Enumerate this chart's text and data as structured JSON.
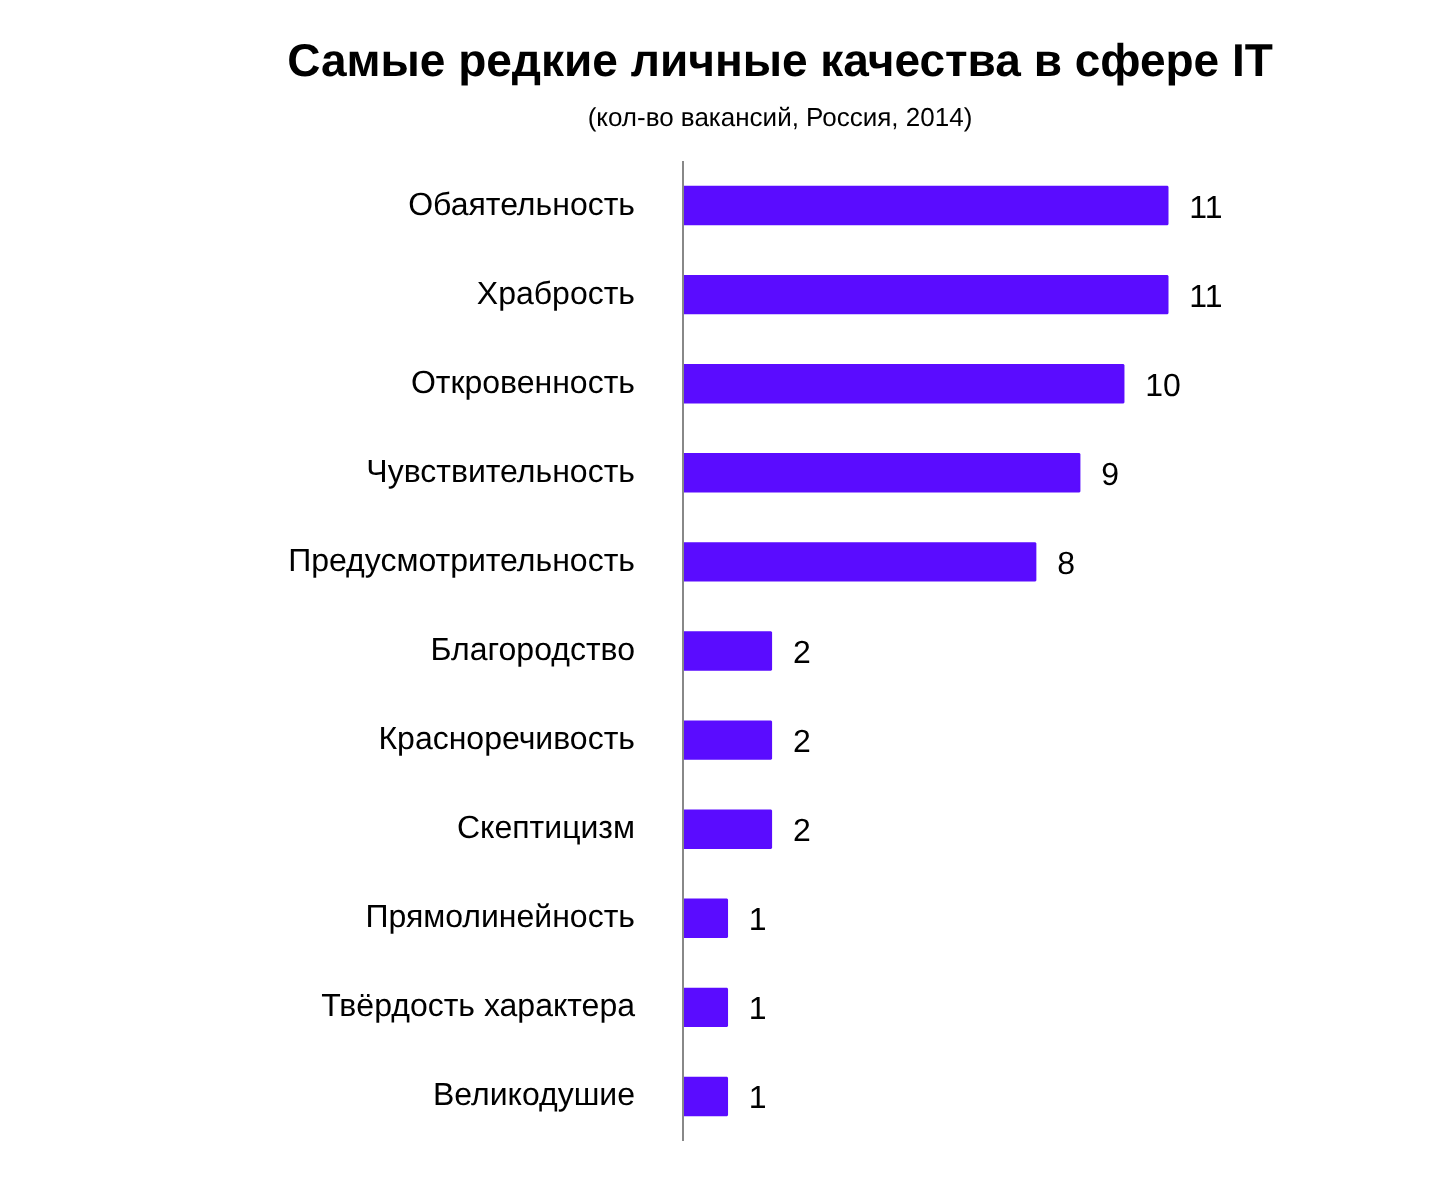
{
  "chart_data": {
    "type": "bar",
    "orientation": "horizontal",
    "title": "Самые редкие личные качества в сфере IT",
    "subtitle": "(кол-во вакансий, Россия, 2014)",
    "categories": [
      "Обаятельность",
      "Храбрость",
      "Откровенность",
      "Чувствительность",
      "Предусмотрительность",
      "Благородство",
      "Красноречивость",
      "Скептицизм",
      "Прямолинейность",
      "Твёрдость характера",
      "Великодушие"
    ],
    "values": [
      11,
      11,
      10,
      9,
      8,
      2,
      2,
      2,
      1,
      1,
      1
    ],
    "color": "#5a0cff",
    "data_labels": true
  }
}
